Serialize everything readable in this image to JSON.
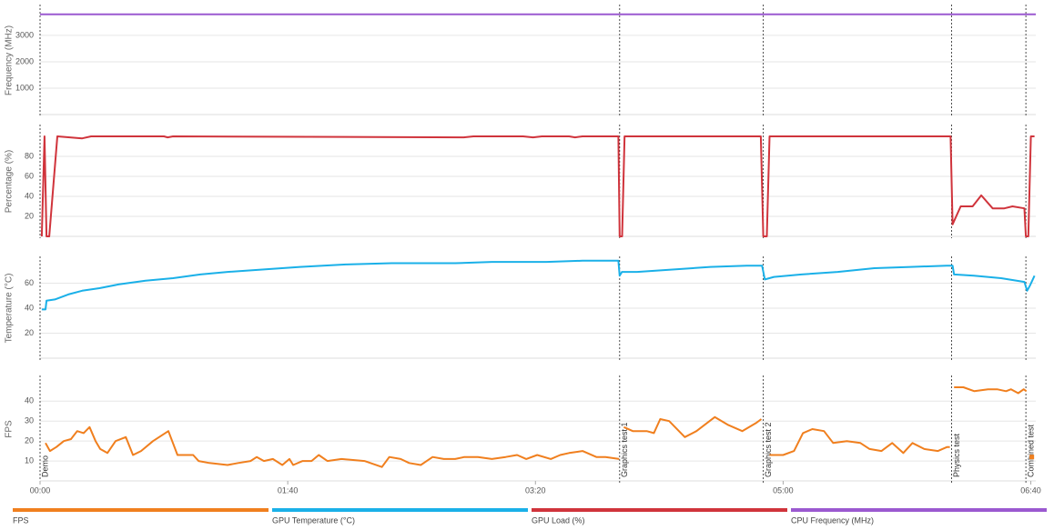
{
  "chart_data": [
    {
      "type": "line",
      "ylabel": "Frequency (MHz)",
      "x": [
        0,
        402
      ],
      "ylim": [
        0,
        4100
      ],
      "yticks": [
        1000,
        2000,
        3000
      ],
      "xlim": [
        0,
        402
      ],
      "grid": true,
      "series": [
        {
          "name": "CPU Frequency (MHz)",
          "color": "#9b59d0",
          "values": [
            3800,
            3800
          ]
        }
      ]
    },
    {
      "type": "line",
      "ylabel": "Percentage (%)",
      "ylim": [
        0,
        110
      ],
      "yticks": [
        20,
        40,
        60,
        80
      ],
      "xlim": [
        0,
        402
      ],
      "grid": true,
      "x": [
        0.7,
        1.8,
        2.6,
        3.7,
        7,
        17,
        20.6,
        50,
        51.5,
        53.7,
        171,
        175,
        195,
        199,
        202.6,
        213.6,
        216,
        219,
        233.5,
        234,
        235,
        236,
        291,
        292,
        293.4,
        294.5,
        367.6,
        368.4,
        371.7,
        376.5,
        380,
        384.6,
        389.3,
        392.6,
        397.4,
        398,
        399,
        400,
        401.5
      ],
      "series": [
        {
          "name": "GPU Load (%)",
          "color": "#d0343c",
          "values": [
            0,
            100,
            0,
            0,
            100,
            98,
            100,
            100,
            99,
            100,
            99,
            100,
            100,
            99,
            100,
            100,
            99,
            100,
            100,
            0,
            0,
            100,
            100,
            0,
            0,
            100,
            100,
            12,
            30,
            30,
            41,
            28,
            28,
            30,
            28,
            0,
            0,
            100,
            100
          ]
        }
      ]
    },
    {
      "type": "line",
      "ylabel": "Temperature (°C)",
      "ylim": [
        0,
        80
      ],
      "yticks": [
        20,
        40,
        60
      ],
      "xlim": [
        0,
        402
      ],
      "grid": true,
      "x": [
        0.7,
        2.2,
        2.6,
        6,
        11.4,
        17,
        24,
        31.6,
        42.6,
        53.7,
        64.7,
        75.7,
        90.4,
        105,
        123.5,
        142,
        167.6,
        182.4,
        204.4,
        219,
        233.5,
        234,
        234.9,
        241,
        256,
        270.6,
        285.3,
        291.5,
        292.6,
        296.3,
        307.4,
        322,
        336.8,
        351.5,
        366,
        368.4,
        369,
        377,
        388,
        397.4,
        398.5,
        399.6,
        401.5
      ],
      "series": [
        {
          "name": "GPU Temperature (°C)",
          "color": "#1ab0e8",
          "values": [
            39,
            39,
            46,
            47,
            51,
            54,
            56,
            59,
            62,
            64,
            67,
            69,
            71,
            73,
            75,
            76,
            76,
            77,
            77,
            78,
            78,
            66,
            69,
            69,
            71,
            73,
            74,
            74,
            63,
            65,
            67,
            69,
            72,
            73,
            74,
            74,
            67,
            66,
            64,
            61,
            54,
            58,
            66
          ]
        }
      ]
    },
    {
      "type": "line",
      "ylabel": "FPS",
      "ylim": [
        0,
        52
      ],
      "yticks": [
        10,
        20,
        30,
        40
      ],
      "xlim": [
        0,
        402
      ],
      "grid": true,
      "xticks": [
        {
          "value": 0,
          "label": "00:00"
        },
        {
          "value": 100,
          "label": "01:40"
        },
        {
          "value": 200,
          "label": "03:20"
        },
        {
          "value": 300,
          "label": "05:00"
        },
        {
          "value": 400,
          "label": "06:40"
        }
      ],
      "markers": [
        {
          "x": 0,
          "label": "Demo"
        },
        {
          "x": 234,
          "label": "Graphics test 1"
        },
        {
          "x": 292,
          "label": "Graphics test 2"
        },
        {
          "x": 368,
          "label": "Physics test"
        },
        {
          "x": 398,
          "label": "Combined test"
        }
      ],
      "x": [
        2.2,
        4,
        6.6,
        9.6,
        12.5,
        15,
        17.6,
        20,
        22.4,
        24.3,
        27.2,
        30.5,
        34.6,
        37.5,
        40.8,
        45.6,
        51.8,
        55.5,
        61.8,
        64,
        68.4,
        75.7,
        80,
        85,
        87.5,
        90.4,
        94,
        97.8,
        100.7,
        102.2,
        106,
        109.6,
        112.5,
        116,
        121.7,
        131,
        138,
        141,
        145.6,
        149,
        153.7,
        158.5,
        163,
        167.6,
        171.3,
        176.8,
        182.4,
        188,
        192.6,
        196.3,
        200.7,
        206.2,
        210,
        213.6,
        219,
        224.6,
        228.3,
        233.8,
        234.5,
        235.7,
        239.3,
        244.9,
        247.8,
        250.4,
        254,
        260.3,
        265,
        272.4,
        277.9,
        283.5,
        289,
        291.2,
        292.5,
        294.5,
        300,
        304.4,
        308,
        311.8,
        316.5,
        320.2,
        325.7,
        331.2,
        334.9,
        339.7,
        344,
        348.5,
        352.2,
        357,
        362.5,
        366.2,
        367.3,
        368,
        369,
        372.8,
        377.2,
        382.7,
        386.4,
        390,
        392,
        394.9,
        397.1,
        398.2,
        399,
        400.4
      ],
      "series": [
        {
          "name": "FPS",
          "color": "#f07f1e",
          "values": [
            19,
            15,
            17,
            20,
            21,
            25,
            24,
            27,
            20,
            16,
            14,
            20,
            22,
            13,
            15,
            20,
            25,
            13,
            13,
            10,
            9,
            8,
            9,
            10,
            12,
            10,
            11,
            8,
            11,
            8,
            10,
            10,
            13,
            10,
            11,
            10,
            7,
            12,
            11,
            9,
            8,
            12,
            11,
            11,
            12,
            12,
            11,
            12,
            13,
            11,
            13,
            11,
            13,
            14,
            15,
            12,
            12,
            11,
            null,
            27,
            25,
            25,
            24,
            31,
            30,
            22,
            25,
            32,
            28,
            25,
            29,
            31,
            null,
            13,
            13,
            15,
            24,
            26,
            25,
            19,
            20,
            19,
            16,
            15,
            19,
            14,
            19,
            16,
            15,
            17,
            17,
            null,
            47,
            47,
            45,
            46,
            46,
            45,
            46,
            44,
            46,
            45,
            null,
            12
          ]
        }
      ]
    }
  ]
}
